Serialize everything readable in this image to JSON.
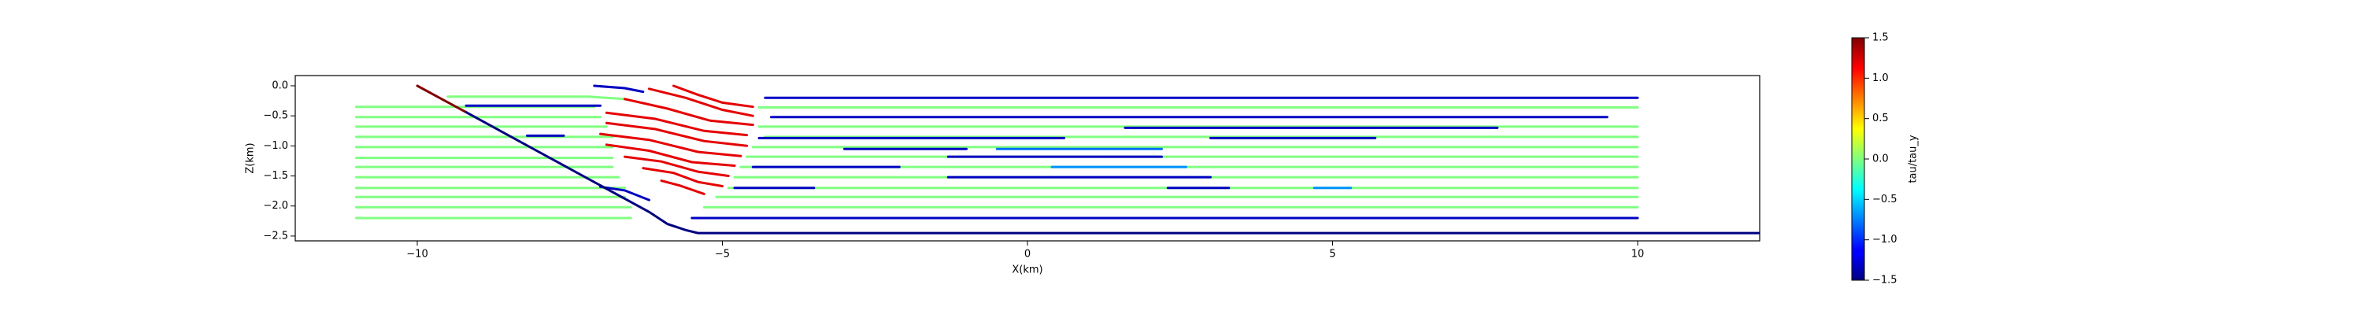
{
  "chart_data": {
    "type": "line",
    "xlabel": "X(km)",
    "ylabel": "Z(km)",
    "xlim": [
      -12,
      12
    ],
    "ylim": [
      -2.58,
      0.17
    ],
    "xticks": [
      {
        "value": -10,
        "label": "−10"
      },
      {
        "value": -5,
        "label": "−5"
      },
      0,
      5,
      10
    ],
    "yticks": [
      {
        "value": 0,
        "label": "0.0"
      },
      {
        "value": -0.5,
        "label": "−0.5"
      },
      {
        "value": -1,
        "label": "−1.0"
      },
      {
        "value": -1.5,
        "label": "−1.5"
      },
      {
        "value": -2,
        "label": "−2.0"
      },
      {
        "value": -2.5,
        "label": "−2.5"
      }
    ],
    "colormap": "jet",
    "colorbar_label": "tau/tau_y",
    "clim": [
      -1.5,
      1.5
    ],
    "cticks": [
      {
        "value": 1.5,
        "label": "1.5"
      },
      {
        "value": 1,
        "label": "1.0"
      },
      {
        "value": 0.5,
        "label": "0.5"
      },
      {
        "value": 0,
        "label": "0.0"
      },
      {
        "value": -0.5,
        "label": "−0.5"
      },
      {
        "value": -1,
        "label": "−1.0"
      },
      {
        "value": -1.5,
        "label": "−1.5"
      }
    ],
    "lines": [
      {
        "x": [
          -9.5,
          -7.2,
          -6.6
        ],
        "z": [
          -0.18,
          -0.18,
          -0.22
        ],
        "value": 0
      },
      {
        "x": [
          -11,
          -7.1
        ],
        "z": [
          -0.35,
          -0.35
        ],
        "value": 0
      },
      {
        "x": [
          -11,
          -7.0
        ],
        "z": [
          -0.52,
          -0.52
        ],
        "value": 0
      },
      {
        "x": [
          -11,
          -6.9
        ],
        "z": [
          -0.68,
          -0.68
        ],
        "value": 0
      },
      {
        "x": [
          -11,
          -6.8
        ],
        "z": [
          -0.85,
          -0.85
        ],
        "value": 0
      },
      {
        "x": [
          -11,
          -6.8
        ],
        "z": [
          -1.02,
          -1.02
        ],
        "value": 0
      },
      {
        "x": [
          -11,
          -6.8
        ],
        "z": [
          -1.2,
          -1.2
        ],
        "value": 0
      },
      {
        "x": [
          -11,
          -6.8
        ],
        "z": [
          -1.35,
          -1.35
        ],
        "value": 0
      },
      {
        "x": [
          -11,
          -6.7
        ],
        "z": [
          -1.52,
          -1.52
        ],
        "value": 0
      },
      {
        "x": [
          -11,
          -6.6
        ],
        "z": [
          -1.7,
          -1.7
        ],
        "value": 0
      },
      {
        "x": [
          -11,
          -6.6
        ],
        "z": [
          -1.85,
          -1.85
        ],
        "value": 0
      },
      {
        "x": [
          -11,
          -6.5
        ],
        "z": [
          -2.02,
          -2.02
        ],
        "value": 0
      },
      {
        "x": [
          -11,
          -6.5
        ],
        "z": [
          -2.2,
          -2.2
        ],
        "value": 0
      },
      {
        "x": [
          -9.2,
          -7.0
        ],
        "z": [
          -0.33,
          -0.33
        ],
        "value": -1.3
      },
      {
        "x": [
          -8.2,
          -7.6
        ],
        "z": [
          -0.83,
          -0.83
        ],
        "value": -1.3
      },
      {
        "x": [
          -7.1,
          -6.6,
          -6.3
        ],
        "z": [
          0,
          -0.04,
          -0.1
        ],
        "value": -1.3
      },
      {
        "x": [
          -5.8,
          -5.4,
          -5.0,
          -4.5
        ],
        "z": [
          0,
          -0.15,
          -0.28,
          -0.35
        ],
        "value": 1.2
      },
      {
        "x": [
          -6.2,
          -5.6,
          -5.0,
          -4.5
        ],
        "z": [
          -0.05,
          -0.2,
          -0.4,
          -0.5
        ],
        "value": 1.2
      },
      {
        "x": [
          -6.6,
          -5.9,
          -5.2,
          -4.5
        ],
        "z": [
          -0.22,
          -0.38,
          -0.58,
          -0.65
        ],
        "value": 1.2
      },
      {
        "x": [
          -6.9,
          -6.1,
          -5.3,
          -4.6
        ],
        "z": [
          -0.45,
          -0.55,
          -0.75,
          -0.82
        ],
        "value": 1.2
      },
      {
        "x": [
          -6.9,
          -6.1,
          -5.3,
          -4.6
        ],
        "z": [
          -0.62,
          -0.72,
          -0.92,
          -1.0
        ],
        "value": 1.2
      },
      {
        "x": [
          -7.0,
          -6.2,
          -5.4,
          -4.7
        ],
        "z": [
          -0.8,
          -0.9,
          -1.1,
          -1.17
        ],
        "value": 1.2
      },
      {
        "x": [
          -6.9,
          -6.2,
          -5.5,
          -4.8
        ],
        "z": [
          -0.98,
          -1.08,
          -1.27,
          -1.33
        ],
        "value": 1.2
      },
      {
        "x": [
          -6.6,
          -6.0,
          -5.4,
          -4.9
        ],
        "z": [
          -1.18,
          -1.26,
          -1.43,
          -1.5
        ],
        "value": 1.2
      },
      {
        "x": [
          -6.3,
          -5.8,
          -5.4,
          -5.0
        ],
        "z": [
          -1.37,
          -1.45,
          -1.6,
          -1.67
        ],
        "value": 1.2
      },
      {
        "x": [
          -6.0,
          -5.7,
          -5.3
        ],
        "z": [
          -1.58,
          -1.66,
          -1.8
        ],
        "value": 1.2
      },
      {
        "x": [
          -7.0,
          -6.6,
          -6.2
        ],
        "z": [
          -1.68,
          -1.74,
          -1.9
        ],
        "value": -1.3
      },
      {
        "x": [
          -4.3,
          10
        ],
        "z": [
          -0.2,
          -0.2
        ],
        "value": -1.3
      },
      {
        "x": [
          -4.4,
          10
        ],
        "z": [
          -0.36,
          -0.36
        ],
        "value": 0
      },
      {
        "x": [
          -4.2,
          9.5
        ],
        "z": [
          -0.52,
          -0.52
        ],
        "value": -1.3
      },
      {
        "x": [
          -4.4,
          10
        ],
        "z": [
          -0.68,
          -0.68
        ],
        "value": 0
      },
      {
        "x": [
          1.6,
          7.7
        ],
        "z": [
          -0.7,
          -0.7
        ],
        "value": -1.3
      },
      {
        "x": [
          -4.3,
          10
        ],
        "z": [
          -0.85,
          -0.85
        ],
        "value": 0
      },
      {
        "x": [
          -4.4,
          0.6
        ],
        "z": [
          -0.87,
          -0.87
        ],
        "value": -1.3
      },
      {
        "x": [
          3.0,
          5.7
        ],
        "z": [
          -0.87,
          -0.87
        ],
        "value": -1.3
      },
      {
        "x": [
          -4.5,
          10
        ],
        "z": [
          -1.02,
          -1.02
        ],
        "value": 0
      },
      {
        "x": [
          -3.0,
          -1.0
        ],
        "z": [
          -1.05,
          -1.05
        ],
        "value": -1.3
      },
      {
        "x": [
          -0.5,
          2.2
        ],
        "z": [
          -1.05,
          -1.05
        ],
        "value": -0.8
      },
      {
        "x": [
          -4.6,
          10
        ],
        "z": [
          -1.18,
          -1.18
        ],
        "value": 0
      },
      {
        "x": [
          -1.3,
          2.2
        ],
        "z": [
          -1.18,
          -1.18
        ],
        "value": -1.3
      },
      {
        "x": [
          -4.7,
          10
        ],
        "z": [
          -1.35,
          -1.35
        ],
        "value": 0
      },
      {
        "x": [
          -4.5,
          -2.1
        ],
        "z": [
          -1.35,
          -1.35
        ],
        "value": -1.3
      },
      {
        "x": [
          0.4,
          2.6
        ],
        "z": [
          -1.35,
          -1.35
        ],
        "value": -0.7
      },
      {
        "x": [
          -4.8,
          10
        ],
        "z": [
          -1.52,
          -1.52
        ],
        "value": 0
      },
      {
        "x": [
          -1.3,
          3.0
        ],
        "z": [
          -1.52,
          -1.52
        ],
        "value": -1.3
      },
      {
        "x": [
          -4.9,
          10
        ],
        "z": [
          -1.7,
          -1.7
        ],
        "value": 0
      },
      {
        "x": [
          -4.8,
          -3.5
        ],
        "z": [
          -1.7,
          -1.7
        ],
        "value": -1.3
      },
      {
        "x": [
          2.3,
          3.3
        ],
        "z": [
          -1.7,
          -1.7
        ],
        "value": -1.3
      },
      {
        "x": [
          4.7,
          5.3
        ],
        "z": [
          -1.7,
          -1.7
        ],
        "value": -0.7
      },
      {
        "x": [
          -5.1,
          10
        ],
        "z": [
          -1.85,
          -1.85
        ],
        "value": 0
      },
      {
        "x": [
          -5.3,
          10
        ],
        "z": [
          -2.02,
          -2.02
        ],
        "value": 0
      },
      {
        "x": [
          -5.5,
          10
        ],
        "z": [
          -2.2,
          -2.2
        ],
        "value": -1.3
      },
      {
        "x": [
          -10,
          -9.2
        ],
        "z": [
          0,
          -0.44
        ],
        "value": 1.5
      },
      {
        "x": [
          -9.2,
          -6.2,
          -5.9,
          -5.6,
          -5.4,
          12
        ],
        "z": [
          -0.44,
          -2.1,
          -2.3,
          -2.4,
          -2.45,
          -2.45
        ],
        "value": -1.5
      }
    ]
  }
}
